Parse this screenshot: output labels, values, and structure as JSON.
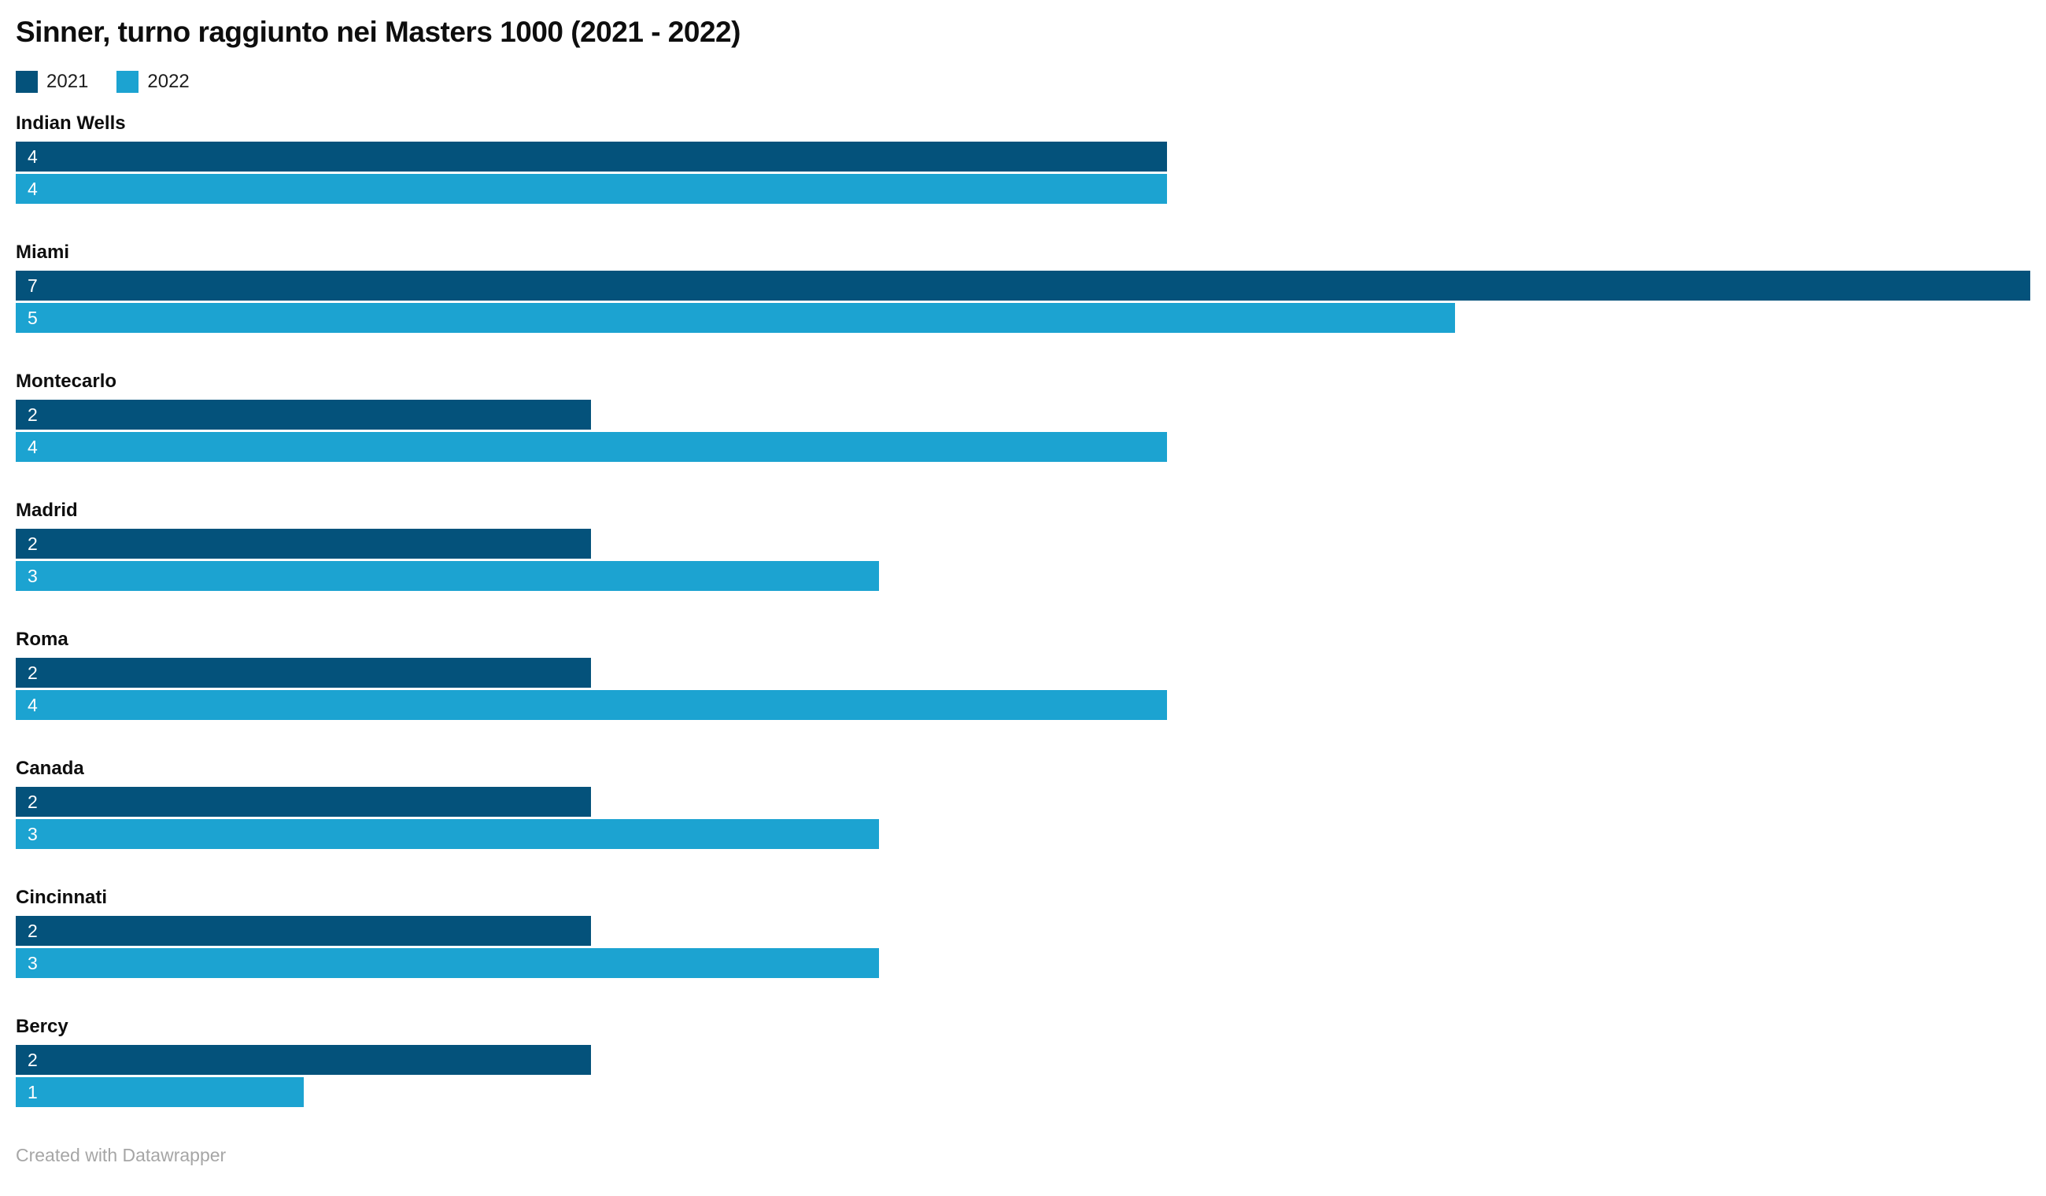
{
  "title": "Sinner, turno raggiunto nei Masters 1000 (2021 - 2022)",
  "footer_credit": "Created with Datawrapper",
  "colors": {
    "series_2021": "#04527b",
    "series_2022": "#1ca3d1",
    "bar_value_text": "#ffffff",
    "footer_text": "#a6a6a6",
    "background": "#ffffff"
  },
  "legend": {
    "position": "top-left",
    "items": [
      {
        "label": "2021",
        "color": "#04527b"
      },
      {
        "label": "2022",
        "color": "#1ca3d1"
      }
    ]
  },
  "chart_data": {
    "type": "bar",
    "orientation": "horizontal",
    "title": "Sinner, turno raggiunto nei Masters 1000 (2021 - 2022)",
    "xlabel": "",
    "ylabel": "",
    "xlim": [
      0,
      7
    ],
    "grid": false,
    "value_labels": "inside-left-white",
    "legend_position": "top-left",
    "categories": [
      "Indian Wells",
      "Miami",
      "Montecarlo",
      "Madrid",
      "Roma",
      "Canada",
      "Cincinnati",
      "Bercy"
    ],
    "series": [
      {
        "name": "2021",
        "color": "#04527b",
        "values": [
          4,
          7,
          2,
          2,
          2,
          2,
          2,
          2
        ]
      },
      {
        "name": "2022",
        "color": "#1ca3d1",
        "values": [
          4,
          5,
          4,
          3,
          4,
          3,
          3,
          1
        ]
      }
    ]
  }
}
